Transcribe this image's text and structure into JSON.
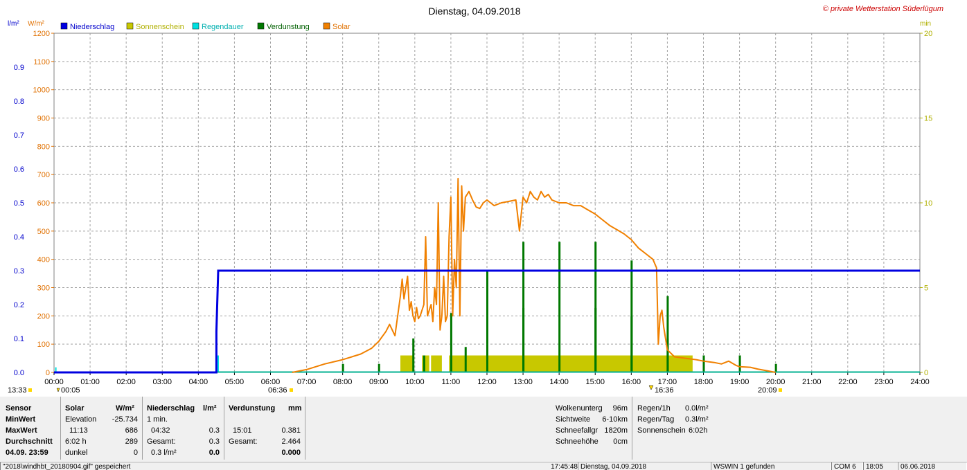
{
  "title": "Dienstag, 04.09.2018",
  "copyright": "© private Wetterstation Süderlügum",
  "unit_left_1": "l/m²",
  "unit_left_2": "W/m²",
  "unit_right": "min",
  "colors": {
    "niederschlag": "#0000e0",
    "sonnenschein": "#c8c800",
    "regendauer": "#00e0e0",
    "verdunstung": "#007800",
    "solar": "#f08000",
    "grid": "#a0a0a0",
    "zero_line": "#00b090"
  },
  "chart_data": {
    "type": "line",
    "title": "Dienstag, 04.09.2018",
    "x_ticks": [
      "00:00",
      "01:00",
      "02:00",
      "03:00",
      "04:00",
      "05:00",
      "06:00",
      "07:00",
      "08:00",
      "09:00",
      "10:00",
      "11:00",
      "12:00",
      "13:00",
      "14:00",
      "15:00",
      "16:00",
      "17:00",
      "18:00",
      "19:00",
      "20:00",
      "21:00",
      "22:00",
      "23:00",
      "24:00"
    ],
    "x_range_hours": [
      0,
      24
    ],
    "y_left_precip": {
      "unit": "l/m²",
      "range": [
        0,
        1.0
      ],
      "ticks": [
        "0.0",
        "0.1",
        "0.2",
        "0.3",
        "0.4",
        "0.5",
        "0.6",
        "0.7",
        "0.8",
        "0.9"
      ]
    },
    "y_left_solar": {
      "unit": "W/m²",
      "range": [
        0,
        1200
      ],
      "ticks": [
        "0",
        "100",
        "200",
        "300",
        "400",
        "500",
        "600",
        "700",
        "800",
        "900",
        "1000",
        "1100",
        "1200"
      ]
    },
    "y_right_minutes": {
      "unit": "min",
      "range": [
        0,
        20
      ],
      "ticks": [
        "0",
        "5",
        "10",
        "15",
        "20"
      ]
    },
    "legend": [
      "Niederschlag",
      "Sonnenschein",
      "Regendauer",
      "Verdunstung",
      "Solar"
    ],
    "legend_position": "top-left",
    "grid": true,
    "series": [
      {
        "name": "Niederschlag",
        "kind": "cumulative_line",
        "points": [
          [
            0,
            0
          ],
          [
            4.5,
            0
          ],
          [
            4.5,
            0.12
          ],
          [
            4.55,
            0.3
          ],
          [
            24,
            0.3
          ]
        ]
      },
      {
        "name": "Regendauer",
        "kind": "bars_minutes",
        "points": [
          [
            0.05,
            0.3
          ],
          [
            4.55,
            1.0
          ]
        ]
      },
      {
        "name": "Sonnenschein",
        "kind": "bars_minutes",
        "spans": [
          [
            9.6,
            9.95
          ],
          [
            10.2,
            10.4
          ],
          [
            10.45,
            10.75
          ],
          [
            10.95,
            17.7
          ]
        ],
        "value": 1.0
      },
      {
        "name": "Verdunstung",
        "kind": "bars_minutes",
        "points": [
          [
            8.0,
            0.5
          ],
          [
            9.0,
            0.5
          ],
          [
            9.95,
            2.0
          ],
          [
            10.25,
            1.0
          ],
          [
            11.0,
            3.5
          ],
          [
            11.4,
            1.5
          ],
          [
            12.0,
            6.0
          ],
          [
            12.0,
            3.0
          ],
          [
            13.0,
            7.7
          ],
          [
            13.0,
            3.8
          ],
          [
            14.0,
            7.7
          ],
          [
            15.0,
            7.7
          ],
          [
            15.0,
            3.8
          ],
          [
            16.0,
            6.6
          ],
          [
            16.0,
            3.3
          ],
          [
            17.0,
            4.5
          ],
          [
            17.0,
            2.0
          ],
          [
            18.0,
            1.0
          ],
          [
            19.0,
            1.0
          ],
          [
            20.0,
            0.5
          ]
        ]
      },
      {
        "name": "Solar",
        "kind": "line",
        "points": [
          [
            6.6,
            0
          ],
          [
            7.0,
            10
          ],
          [
            7.5,
            30
          ],
          [
            8.0,
            45
          ],
          [
            8.5,
            65
          ],
          [
            8.8,
            85
          ],
          [
            9.0,
            110
          ],
          [
            9.2,
            145
          ],
          [
            9.3,
            170
          ],
          [
            9.45,
            130
          ],
          [
            9.6,
            270
          ],
          [
            9.65,
            330
          ],
          [
            9.7,
            260
          ],
          [
            9.8,
            340
          ],
          [
            9.85,
            220
          ],
          [
            9.9,
            250
          ],
          [
            9.95,
            200
          ],
          [
            10.0,
            180
          ],
          [
            10.05,
            230
          ],
          [
            10.1,
            190
          ],
          [
            10.15,
            200
          ],
          [
            10.25,
            240
          ],
          [
            10.3,
            480
          ],
          [
            10.35,
            200
          ],
          [
            10.45,
            240
          ],
          [
            10.5,
            180
          ],
          [
            10.55,
            300
          ],
          [
            10.6,
            240
          ],
          [
            10.65,
            600
          ],
          [
            10.7,
            150
          ],
          [
            10.75,
            200
          ],
          [
            10.8,
            340
          ],
          [
            10.85,
            180
          ],
          [
            10.9,
            200
          ],
          [
            10.95,
            480
          ],
          [
            11.0,
            620
          ],
          [
            11.05,
            200
          ],
          [
            11.1,
            400
          ],
          [
            11.15,
            300
          ],
          [
            11.2,
            686
          ],
          [
            11.25,
            200
          ],
          [
            11.3,
            660
          ],
          [
            11.35,
            500
          ],
          [
            11.4,
            620
          ],
          [
            11.5,
            640
          ],
          [
            11.6,
            610
          ],
          [
            11.7,
            585
          ],
          [
            11.8,
            580
          ],
          [
            11.9,
            600
          ],
          [
            12.0,
            610
          ],
          [
            12.2,
            590
          ],
          [
            12.4,
            600
          ],
          [
            12.6,
            605
          ],
          [
            12.8,
            610
          ],
          [
            12.9,
            500
          ],
          [
            13.0,
            620
          ],
          [
            13.1,
            600
          ],
          [
            13.2,
            640
          ],
          [
            13.3,
            620
          ],
          [
            13.4,
            610
          ],
          [
            13.5,
            640
          ],
          [
            13.6,
            620
          ],
          [
            13.7,
            630
          ],
          [
            13.8,
            610
          ],
          [
            14.0,
            600
          ],
          [
            14.2,
            600
          ],
          [
            14.4,
            590
          ],
          [
            14.6,
            590
          ],
          [
            14.8,
            575
          ],
          [
            15.0,
            560
          ],
          [
            15.2,
            540
          ],
          [
            15.4,
            520
          ],
          [
            15.6,
            505
          ],
          [
            15.8,
            490
          ],
          [
            16.0,
            470
          ],
          [
            16.2,
            440
          ],
          [
            16.4,
            420
          ],
          [
            16.6,
            400
          ],
          [
            16.7,
            370
          ],
          [
            16.75,
            100
          ],
          [
            16.8,
            200
          ],
          [
            16.85,
            220
          ],
          [
            16.9,
            160
          ],
          [
            17.0,
            80
          ],
          [
            17.2,
            55
          ],
          [
            17.5,
            50
          ],
          [
            17.8,
            45
          ],
          [
            18.0,
            40
          ],
          [
            18.3,
            35
          ],
          [
            18.5,
            30
          ],
          [
            18.7,
            40
          ],
          [
            18.9,
            25
          ],
          [
            19.0,
            20
          ],
          [
            19.3,
            18
          ],
          [
            19.5,
            12
          ],
          [
            19.8,
            5
          ],
          [
            20.0,
            0
          ]
        ]
      }
    ]
  },
  "markers": {
    "sunrise_label": "06:36",
    "sunset_label": "16:36",
    "left_label": "13:33",
    "left_time": "00:05",
    "right_time": "20:09"
  },
  "info": {
    "sensor": "Sensor",
    "minwert": "MinWert",
    "maxwert": "MaxWert",
    "durchschnitt": "Durchschnitt",
    "date_time": "04.09. 23:59",
    "solar_head": "Solar",
    "solar_unit": "W/m²",
    "elevation_label": "Elevation",
    "elevation_value": "-25.734",
    "solar_max_time": "11:13",
    "solar_max_value": "686",
    "solar_sun_hours": "6:02 h",
    "solar_avg": "289",
    "dunkel_label": "dunkel",
    "dunkel_value": "0",
    "precip_head": "Niederschlag",
    "precip_unit": "l/m²",
    "precip_interval": "1 min.",
    "precip_max_time": "04:32",
    "precip_max_value": "0.3",
    "gesamt_label": "Gesamt:",
    "precip_total": "0.3",
    "precip_rate": "0.3 l/m²",
    "precip_day": "0.0",
    "evap_head": "Verdunstung",
    "evap_unit": "mm",
    "evap_max_time": "15:01",
    "evap_max_value": "0.381",
    "evap_total": "2.464",
    "evap_day": "0.000",
    "wolken_label": "Wolkenunterg",
    "wolken_value": "96m",
    "sicht_label": "Sichtweite",
    "sicht_value": "6-10km",
    "schneefall_label": "Schneefallgr",
    "schneefall_value": "1820m",
    "schneehoehe_label": "Schneehöhe",
    "schneehoehe_value": "0cm",
    "regen1h_label": "Regen/1h",
    "regen1h_value": "0.0l/m²",
    "regentag_label": "Regen/Tag",
    "regentag_value": "0.3l/m²",
    "sonnenschein_label": "Sonnenschein",
    "sonnenschein_value": "6:02h"
  },
  "status": {
    "file": "\"2018\\windhbt_20180904.gif\" gespeichert",
    "time": "17:45:48",
    "date": "Dienstag, 04.09.2018",
    "found": "WSWIN 1 gefunden",
    "com": "COM 6",
    "clock": "18:05",
    "date2": "06.06.2018"
  }
}
